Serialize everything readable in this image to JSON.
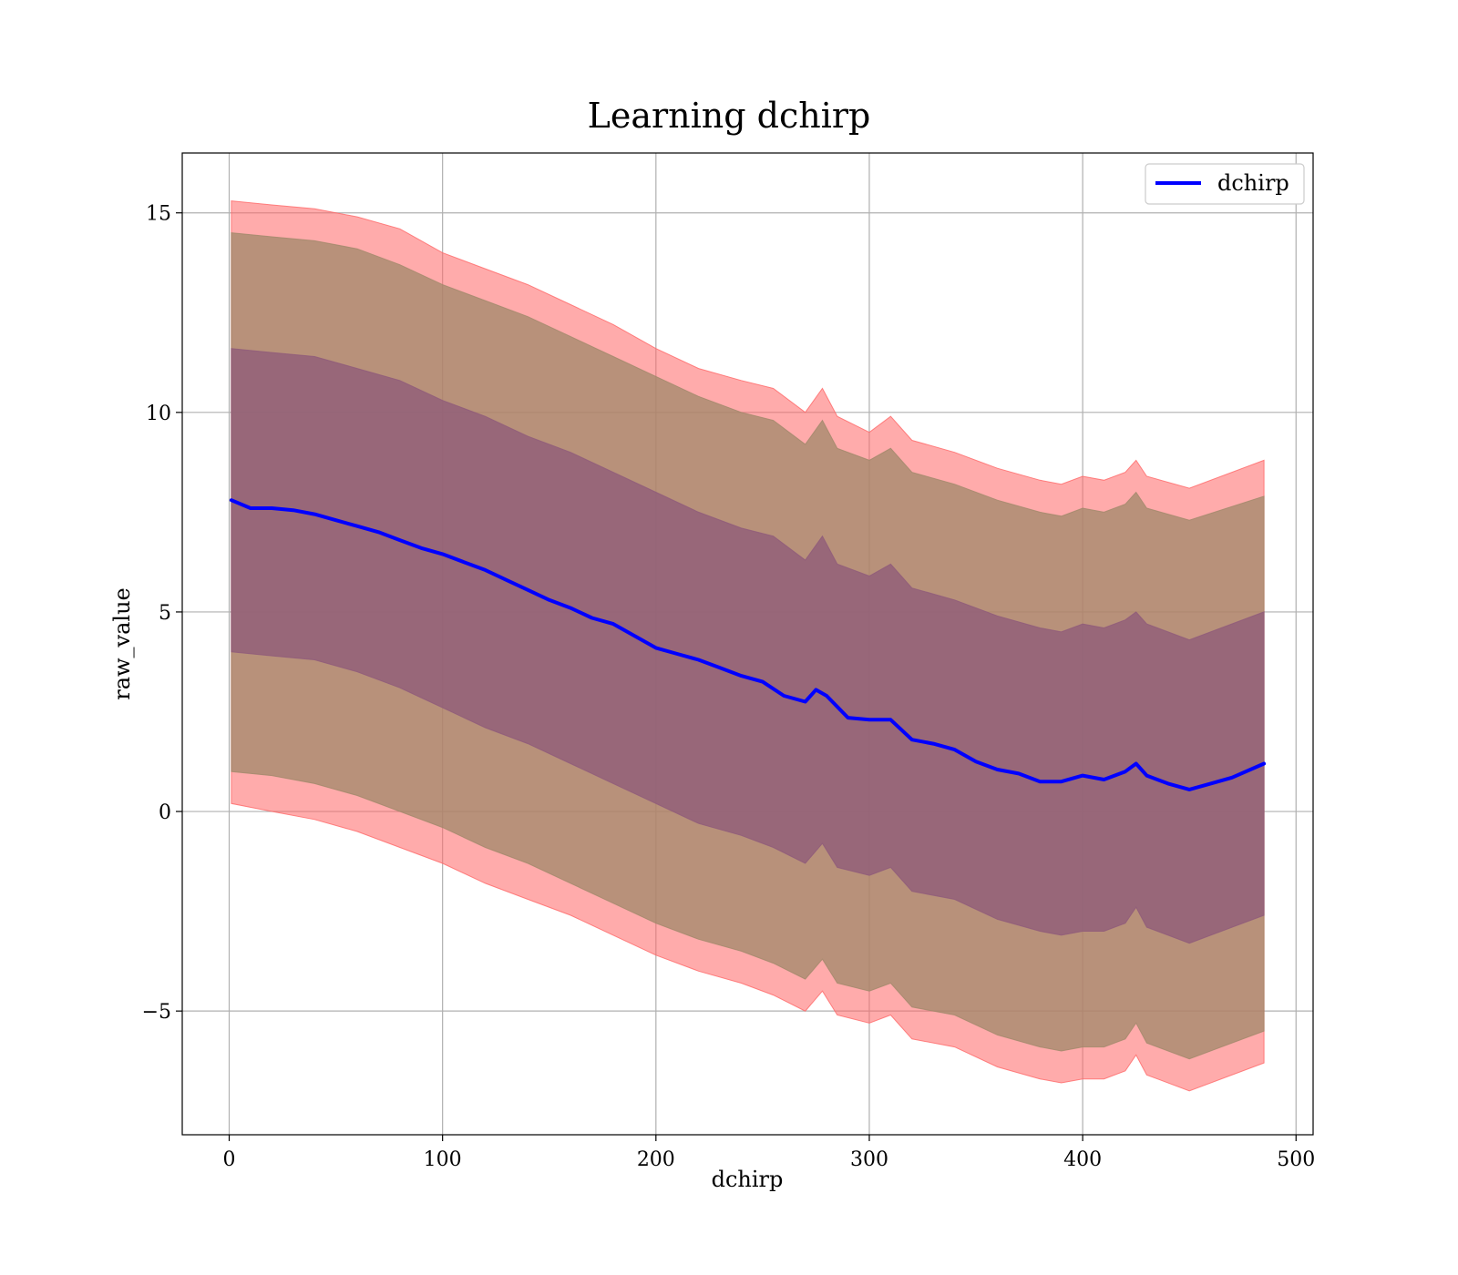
{
  "chart_data": {
    "type": "line",
    "title": "Learning dchirp",
    "xlabel": "dchirp",
    "ylabel": "raw_value",
    "xlim": [
      -22,
      508
    ],
    "ylim": [
      -8.1,
      16.5
    ],
    "xticks": [
      0,
      100,
      200,
      300,
      400,
      500
    ],
    "yticks": [
      -5,
      0,
      5,
      10,
      15
    ],
    "xtick_labels": [
      "0",
      "100",
      "200",
      "300",
      "400",
      "500"
    ],
    "ytick_labels": [
      "−5",
      "0",
      "5",
      "10",
      "15"
    ],
    "grid": true,
    "legend_position": "top-right",
    "series": [
      {
        "name": "dchirp",
        "color": "#0000ff",
        "x": [
          1,
          10,
          20,
          30,
          40,
          50,
          60,
          70,
          80,
          90,
          100,
          110,
          120,
          130,
          140,
          150,
          160,
          170,
          180,
          190,
          200,
          210,
          220,
          230,
          240,
          250,
          260,
          270,
          275,
          280,
          290,
          300,
          310,
          320,
          330,
          340,
          350,
          360,
          370,
          380,
          390,
          400,
          410,
          420,
          425,
          430,
          440,
          450,
          460,
          470,
          485
        ],
        "y": [
          7.8,
          7.6,
          7.6,
          7.55,
          7.45,
          7.3,
          7.15,
          7.0,
          6.8,
          6.6,
          6.45,
          6.25,
          6.05,
          5.8,
          5.55,
          5.3,
          5.1,
          4.85,
          4.7,
          4.4,
          4.1,
          3.95,
          3.8,
          3.6,
          3.4,
          3.25,
          2.9,
          2.75,
          3.05,
          2.9,
          2.35,
          2.3,
          2.3,
          1.8,
          1.7,
          1.55,
          1.25,
          1.05,
          0.95,
          0.75,
          0.75,
          0.9,
          0.8,
          1.0,
          1.2,
          0.9,
          0.7,
          0.55,
          0.7,
          0.85,
          1.2
        ]
      }
    ],
    "bands": [
      {
        "color": "#ff6666",
        "opacity": 0.55,
        "x": [
          1,
          20,
          40,
          60,
          80,
          100,
          120,
          140,
          160,
          180,
          200,
          220,
          240,
          255,
          270,
          278,
          285,
          300,
          310,
          320,
          340,
          360,
          380,
          390,
          400,
          410,
          420,
          425,
          430,
          450,
          485
        ],
        "upper": [
          15.3,
          15.2,
          15.1,
          14.9,
          14.6,
          14.0,
          13.6,
          13.2,
          12.7,
          12.2,
          11.6,
          11.1,
          10.8,
          10.6,
          10.0,
          10.6,
          9.9,
          9.5,
          9.9,
          9.3,
          9.0,
          8.6,
          8.3,
          8.2,
          8.4,
          8.3,
          8.5,
          8.8,
          8.4,
          8.1,
          8.8
        ],
        "lower": [
          0.2,
          0.0,
          -0.2,
          -0.5,
          -0.9,
          -1.3,
          -1.8,
          -2.2,
          -2.6,
          -3.1,
          -3.6,
          -4.0,
          -4.3,
          -4.6,
          -5.0,
          -4.5,
          -5.1,
          -5.3,
          -5.1,
          -5.7,
          -5.9,
          -6.4,
          -6.7,
          -6.8,
          -6.7,
          -6.7,
          -6.5,
          -6.1,
          -6.6,
          -7.0,
          -6.3
        ]
      },
      {
        "color": "#a0886a",
        "opacity": 0.75,
        "x": [
          1,
          20,
          40,
          60,
          80,
          100,
          120,
          140,
          160,
          180,
          200,
          220,
          240,
          255,
          270,
          278,
          285,
          300,
          310,
          320,
          340,
          360,
          380,
          390,
          400,
          410,
          420,
          425,
          430,
          450,
          485
        ],
        "upper": [
          14.5,
          14.4,
          14.3,
          14.1,
          13.7,
          13.2,
          12.8,
          12.4,
          11.9,
          11.4,
          10.9,
          10.4,
          10.0,
          9.8,
          9.2,
          9.8,
          9.1,
          8.8,
          9.1,
          8.5,
          8.2,
          7.8,
          7.5,
          7.4,
          7.6,
          7.5,
          7.7,
          8.0,
          7.6,
          7.3,
          7.9
        ],
        "lower": [
          1.0,
          0.9,
          0.7,
          0.4,
          0.0,
          -0.4,
          -0.9,
          -1.3,
          -1.8,
          -2.3,
          -2.8,
          -3.2,
          -3.5,
          -3.8,
          -4.2,
          -3.7,
          -4.3,
          -4.5,
          -4.3,
          -4.9,
          -5.1,
          -5.6,
          -5.9,
          -6.0,
          -5.9,
          -5.9,
          -5.7,
          -5.3,
          -5.8,
          -6.2,
          -5.5
        ]
      },
      {
        "color": "#8e5a7a",
        "opacity": 0.75,
        "x": [
          1,
          20,
          40,
          60,
          80,
          100,
          120,
          140,
          160,
          180,
          200,
          220,
          240,
          255,
          270,
          278,
          285,
          300,
          310,
          320,
          340,
          360,
          380,
          390,
          400,
          410,
          420,
          425,
          430,
          450,
          485
        ],
        "upper": [
          11.6,
          11.5,
          11.4,
          11.1,
          10.8,
          10.3,
          9.9,
          9.4,
          9.0,
          8.5,
          8.0,
          7.5,
          7.1,
          6.9,
          6.3,
          6.9,
          6.2,
          5.9,
          6.2,
          5.6,
          5.3,
          4.9,
          4.6,
          4.5,
          4.7,
          4.6,
          4.8,
          5.0,
          4.7,
          4.3,
          5.0
        ],
        "lower": [
          4.0,
          3.9,
          3.8,
          3.5,
          3.1,
          2.6,
          2.1,
          1.7,
          1.2,
          0.7,
          0.2,
          -0.3,
          -0.6,
          -0.9,
          -1.3,
          -0.8,
          -1.4,
          -1.6,
          -1.4,
          -2.0,
          -2.2,
          -2.7,
          -3.0,
          -3.1,
          -3.0,
          -3.0,
          -2.8,
          -2.4,
          -2.9,
          -3.3,
          -2.6
        ]
      }
    ]
  }
}
